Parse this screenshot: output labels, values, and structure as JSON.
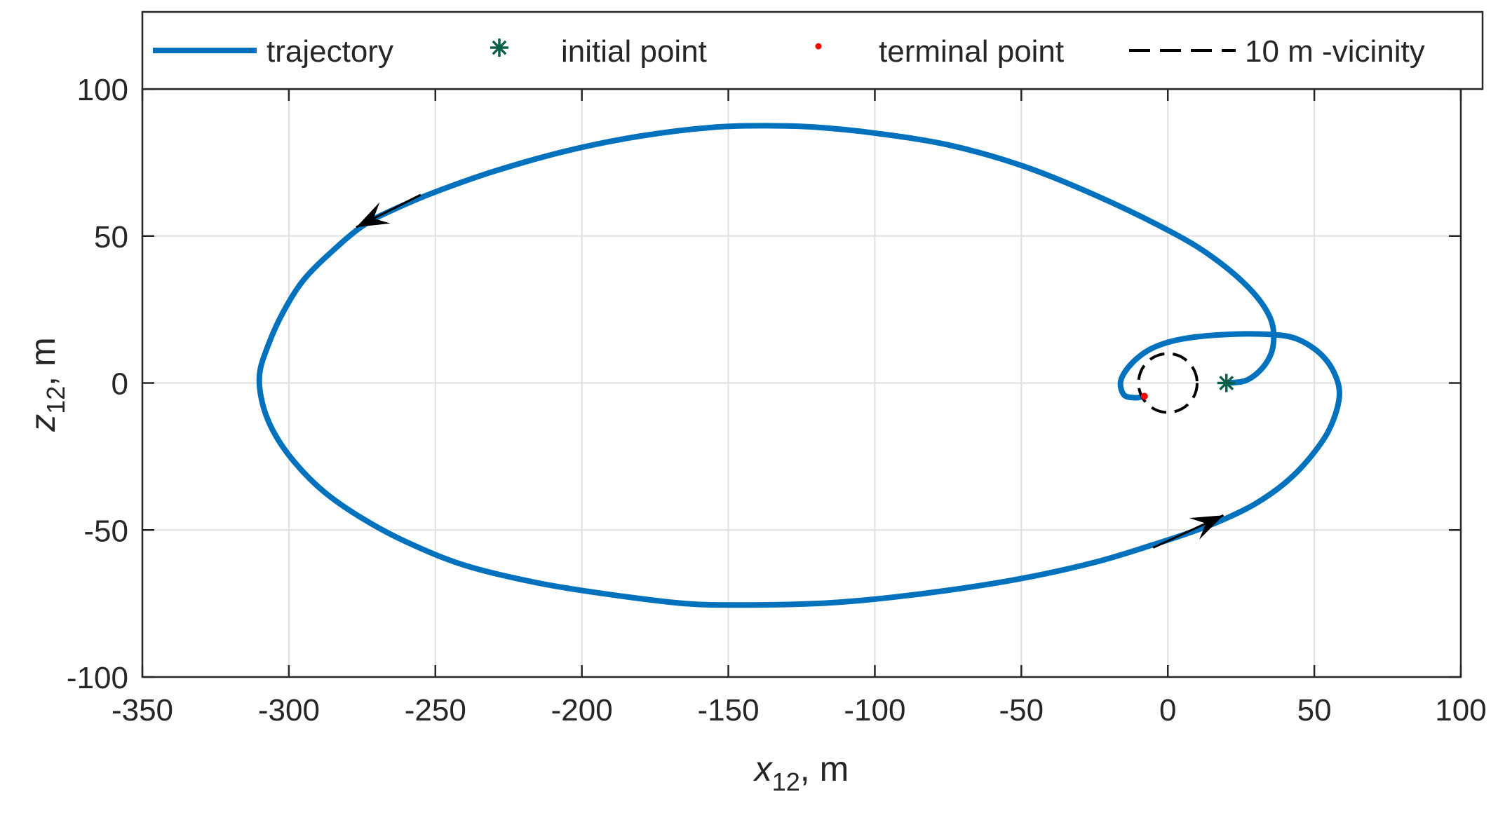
{
  "chart_data": {
    "type": "line",
    "title": "",
    "xlabel": {
      "main": "x",
      "sub": "12",
      "unit": ",  m"
    },
    "ylabel": {
      "main": "z",
      "sub": "12",
      "unit": ",  m"
    },
    "xlim": [
      -350,
      100
    ],
    "ylim": [
      -100,
      100
    ],
    "xticks": [
      -350,
      -300,
      -250,
      -200,
      -150,
      -100,
      -50,
      0,
      50,
      100
    ],
    "yticks": [
      -100,
      -50,
      0,
      50,
      100
    ],
    "xtick_labels": [
      "-350",
      "-300",
      "-250",
      "-200",
      "-150",
      "-100",
      "-50",
      "0",
      "50",
      "100"
    ],
    "ytick_labels": [
      "-100",
      "-50",
      "0",
      "50",
      "100"
    ],
    "grid": true,
    "legend": {
      "placement": "top",
      "entries": [
        {
          "label": "trajectory"
        },
        {
          "label": "initial point"
        },
        {
          "label": "terminal point"
        },
        {
          "label": "10 m -vicinity"
        }
      ]
    },
    "series": [
      {
        "name": "trajectory",
        "color": "#0072BD",
        "style": "solid",
        "points": [
          [
            20,
            0
          ],
          [
            27,
            1
          ],
          [
            33,
            6
          ],
          [
            36,
            13
          ],
          [
            35,
            22
          ],
          [
            28,
            32
          ],
          [
            15,
            43
          ],
          [
            0,
            52
          ],
          [
            -25,
            64
          ],
          [
            -50,
            74
          ],
          [
            -75,
            81
          ],
          [
            -100,
            85
          ],
          [
            -120,
            87
          ],
          [
            -135,
            87.5
          ],
          [
            -155,
            87
          ],
          [
            -180,
            84
          ],
          [
            -205,
            79
          ],
          [
            -230,
            72
          ],
          [
            -250,
            65
          ],
          [
            -262,
            60
          ],
          [
            -274,
            54
          ],
          [
            -285,
            45
          ],
          [
            -295,
            35
          ],
          [
            -302,
            24
          ],
          [
            -307,
            13
          ],
          [
            -310,
            3
          ],
          [
            -309,
            -7
          ],
          [
            -305,
            -17
          ],
          [
            -298,
            -27
          ],
          [
            -288,
            -37
          ],
          [
            -275,
            -46
          ],
          [
            -260,
            -54
          ],
          [
            -240,
            -62
          ],
          [
            -215,
            -68
          ],
          [
            -190,
            -72
          ],
          [
            -165,
            -75
          ],
          [
            -145,
            -75.5
          ],
          [
            -120,
            -75
          ],
          [
            -100,
            -73.5
          ],
          [
            -75,
            -70.5
          ],
          [
            -50,
            -66.5
          ],
          [
            -25,
            -61
          ],
          [
            -5,
            -55
          ],
          [
            10,
            -50
          ],
          [
            20,
            -46
          ],
          [
            30,
            -41
          ],
          [
            40,
            -34
          ],
          [
            48,
            -26
          ],
          [
            55,
            -16
          ],
          [
            58.5,
            -5
          ],
          [
            57,
            3
          ],
          [
            52,
            10
          ],
          [
            44,
            15
          ],
          [
            35,
            16.5
          ],
          [
            20,
            16.5
          ],
          [
            5,
            15
          ],
          [
            -5,
            12
          ],
          [
            -12,
            7
          ],
          [
            -16,
            1
          ],
          [
            -15,
            -4
          ],
          [
            -11,
            -5
          ],
          [
            -8,
            -4.5
          ]
        ]
      },
      {
        "name": "initial point",
        "color": "#0B5E49",
        "marker": "asterisk",
        "points": [
          [
            20,
            0
          ]
        ]
      },
      {
        "name": "terminal point",
        "color": "#FF0000",
        "marker": "dot",
        "points": [
          [
            -8,
            -4.5
          ]
        ]
      },
      {
        "name": "10 m -vicinity",
        "color": "#000000",
        "style": "dashed",
        "center": [
          0,
          0
        ],
        "radius": 10
      }
    ],
    "direction_arrows": [
      {
        "from": [
          -255,
          64
        ],
        "to": [
          -277,
          53
        ]
      },
      {
        "from": [
          -5,
          -56
        ],
        "to": [
          19,
          -45
        ]
      }
    ]
  }
}
